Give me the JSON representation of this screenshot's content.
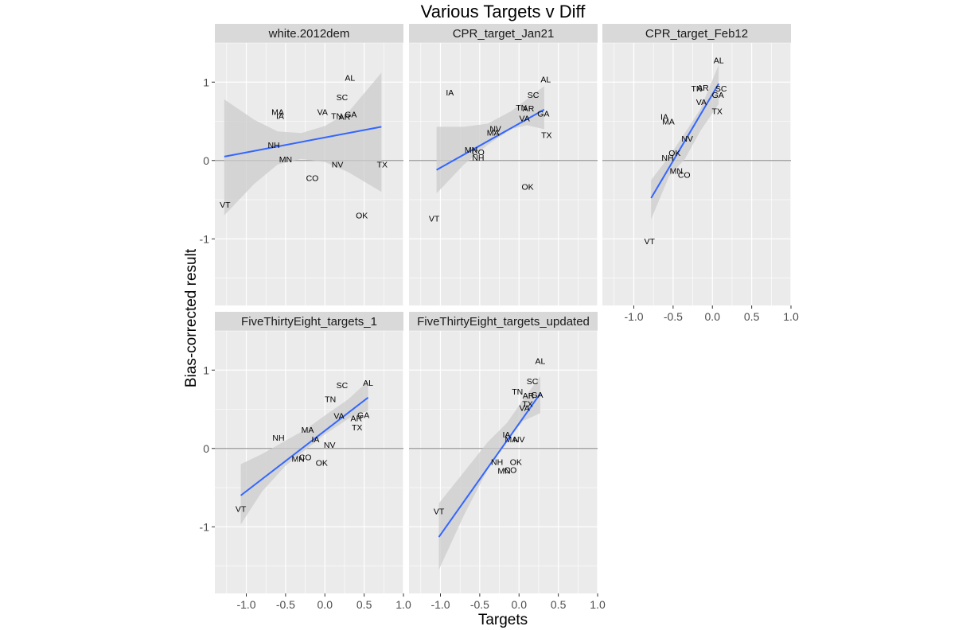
{
  "chart_data": {
    "type": "scatter",
    "title": "Various Targets v Diff",
    "xlabel": "Targets",
    "ylabel": "Bias-corrected result",
    "xlim": [
      -1.4,
      1.0
    ],
    "ylim": [
      -1.85,
      1.5
    ],
    "x_ticks": [
      -1.0,
      -0.5,
      0.0,
      0.5,
      1.0
    ],
    "x_tick_labels": [
      "-1.0",
      "-0.5",
      "0.0",
      "0.5",
      "1.0"
    ],
    "y_ticks": [
      -1,
      0,
      1
    ],
    "y_tick_labels": [
      "-1",
      "0",
      "1"
    ],
    "hline": 0,
    "colors": {
      "panel_bg": "#ebebeb",
      "strip_bg": "#d9d9d9",
      "grid": "#ffffff",
      "fit_line": "#3366ff",
      "ribbon": "#cccccc",
      "hline": "#999999"
    },
    "panels": [
      {
        "name": "white.2012dem",
        "fit": {
          "x": [
            -1.28,
            0.72
          ],
          "y": [
            0.05,
            0.43
          ]
        },
        "ribbon": {
          "x": [
            -1.28,
            -0.9,
            -0.6,
            -0.3,
            0.0,
            0.3,
            0.72
          ],
          "lower": [
            -0.7,
            -0.3,
            -0.05,
            0.02,
            -0.02,
            -0.15,
            -0.4
          ],
          "upper": [
            0.78,
            0.52,
            0.37,
            0.35,
            0.44,
            0.62,
            1.12
          ]
        },
        "points": [
          {
            "label": "AL",
            "x": 0.32,
            "y": 1.06
          },
          {
            "label": "SC",
            "x": 0.22,
            "y": 0.81
          },
          {
            "label": "MA",
            "x": -0.6,
            "y": 0.62
          },
          {
            "label": "IA",
            "x": -0.57,
            "y": 0.57
          },
          {
            "label": "VA",
            "x": -0.03,
            "y": 0.62
          },
          {
            "label": "TN",
            "x": 0.15,
            "y": 0.57
          },
          {
            "label": "AR",
            "x": 0.25,
            "y": 0.56
          },
          {
            "label": "GA",
            "x": 0.33,
            "y": 0.59
          },
          {
            "label": "NH",
            "x": -0.65,
            "y": 0.2
          },
          {
            "label": "MN",
            "x": -0.5,
            "y": 0.02
          },
          {
            "label": "NV",
            "x": 0.16,
            "y": -0.05
          },
          {
            "label": "TX",
            "x": 0.73,
            "y": -0.05
          },
          {
            "label": "CO",
            "x": -0.16,
            "y": -0.22
          },
          {
            "label": "OK",
            "x": 0.47,
            "y": -0.7
          },
          {
            "label": "VT",
            "x": -1.27,
            "y": -0.56
          }
        ]
      },
      {
        "name": "CPR_target_Jan21",
        "fit": {
          "x": [
            -1.05,
            0.32
          ],
          "y": [
            -0.12,
            0.65
          ]
        },
        "ribbon": {
          "x": [
            -1.05,
            -0.7,
            -0.4,
            -0.1,
            0.1,
            0.32
          ],
          "lower": [
            -0.42,
            -0.05,
            0.2,
            0.4,
            0.45,
            0.4
          ],
          "upper": [
            0.43,
            0.43,
            0.47,
            0.63,
            0.78,
            0.95
          ]
        },
        "points": [
          {
            "label": "IA",
            "x": -0.88,
            "y": 0.87
          },
          {
            "label": "AL",
            "x": 0.34,
            "y": 1.04
          },
          {
            "label": "SC",
            "x": 0.18,
            "y": 0.84
          },
          {
            "label": "TN",
            "x": 0.03,
            "y": 0.68
          },
          {
            "label": "AR",
            "x": 0.12,
            "y": 0.67
          },
          {
            "label": "VA",
            "x": 0.07,
            "y": 0.54
          },
          {
            "label": "GA",
            "x": 0.31,
            "y": 0.6
          },
          {
            "label": "NV",
            "x": -0.3,
            "y": 0.41
          },
          {
            "label": "MA",
            "x": -0.33,
            "y": 0.36
          },
          {
            "label": "TX",
            "x": 0.35,
            "y": 0.33
          },
          {
            "label": "MN",
            "x": -0.61,
            "y": 0.14
          },
          {
            "label": "CO",
            "x": -0.52,
            "y": 0.11
          },
          {
            "label": "NH",
            "x": -0.52,
            "y": 0.04
          },
          {
            "label": "OK",
            "x": 0.11,
            "y": -0.33
          },
          {
            "label": "VT",
            "x": -1.08,
            "y": -0.74
          }
        ]
      },
      {
        "name": "CPR_target_Feb12",
        "fit": {
          "x": [
            -0.78,
            0.08
          ],
          "y": [
            -0.48,
            0.98
          ]
        },
        "ribbon": {
          "x": [
            -0.78,
            -0.55,
            -0.35,
            -0.15,
            0.08
          ],
          "lower": [
            -0.75,
            -0.2,
            0.02,
            0.38,
            0.72
          ],
          "upper": [
            -0.25,
            0.05,
            0.35,
            0.66,
            1.22
          ]
        },
        "points": [
          {
            "label": "AL",
            "x": 0.08,
            "y": 1.28
          },
          {
            "label": "TN",
            "x": -0.2,
            "y": 0.92
          },
          {
            "label": "AR",
            "x": -0.12,
            "y": 0.93
          },
          {
            "label": "SC",
            "x": 0.11,
            "y": 0.92
          },
          {
            "label": "GA",
            "x": 0.07,
            "y": 0.84
          },
          {
            "label": "VA",
            "x": -0.14,
            "y": 0.75
          },
          {
            "label": "TX",
            "x": 0.06,
            "y": 0.63
          },
          {
            "label": "IA",
            "x": -0.61,
            "y": 0.56
          },
          {
            "label": "MA",
            "x": -0.56,
            "y": 0.5
          },
          {
            "label": "NV",
            "x": -0.32,
            "y": 0.28
          },
          {
            "label": "OK",
            "x": -0.48,
            "y": 0.1
          },
          {
            "label": "NH",
            "x": -0.57,
            "y": 0.04
          },
          {
            "label": "MN",
            "x": -0.46,
            "y": -0.13
          },
          {
            "label": "CO",
            "x": -0.36,
            "y": -0.18
          },
          {
            "label": "VT",
            "x": -0.8,
            "y": -1.03
          }
        ]
      },
      {
        "name": "FiveThirtyEight_targets_1",
        "fit": {
          "x": [
            -1.07,
            0.55
          ],
          "y": [
            -0.6,
            0.65
          ]
        },
        "ribbon": {
          "x": [
            -1.07,
            -0.8,
            -0.5,
            -0.25,
            0.0,
            0.3,
            0.55
          ],
          "lower": [
            -0.97,
            -0.55,
            -0.22,
            -0.02,
            0.18,
            0.38,
            0.48
          ],
          "upper": [
            -0.2,
            -0.07,
            0.1,
            0.24,
            0.42,
            0.63,
            0.86
          ]
        },
        "points": [
          {
            "label": "SC",
            "x": 0.22,
            "y": 0.81
          },
          {
            "label": "AL",
            "x": 0.55,
            "y": 0.84
          },
          {
            "label": "TN",
            "x": 0.07,
            "y": 0.63
          },
          {
            "label": "VA",
            "x": 0.18,
            "y": 0.42
          },
          {
            "label": "GA",
            "x": 0.49,
            "y": 0.43
          },
          {
            "label": "AR",
            "x": 0.4,
            "y": 0.39
          },
          {
            "label": "TX",
            "x": 0.41,
            "y": 0.27
          },
          {
            "label": "MA",
            "x": -0.22,
            "y": 0.24
          },
          {
            "label": "NH",
            "x": -0.59,
            "y": 0.14
          },
          {
            "label": "IA",
            "x": -0.12,
            "y": 0.12
          },
          {
            "label": "NV",
            "x": 0.06,
            "y": 0.05
          },
          {
            "label": "CO",
            "x": -0.25,
            "y": -0.11
          },
          {
            "label": "MN",
            "x": -0.34,
            "y": -0.13
          },
          {
            "label": "OK",
            "x": -0.04,
            "y": -0.18
          },
          {
            "label": "VT",
            "x": -1.07,
            "y": -0.77
          }
        ]
      },
      {
        "name": "FiveThirtyEight_targets_updated",
        "fit": {
          "x": [
            -1.02,
            0.27
          ],
          "y": [
            -1.13,
            0.7
          ]
        },
        "ribbon": {
          "x": [
            -1.02,
            -0.7,
            -0.4,
            -0.15,
            0.05,
            0.27
          ],
          "lower": [
            -1.55,
            -0.85,
            -0.27,
            0.1,
            0.35,
            0.45
          ],
          "upper": [
            -0.7,
            -0.3,
            0.08,
            0.33,
            0.62,
            0.92
          ]
        },
        "points": [
          {
            "label": "AL",
            "x": 0.27,
            "y": 1.12
          },
          {
            "label": "SC",
            "x": 0.17,
            "y": 0.86
          },
          {
            "label": "TN",
            "x": -0.02,
            "y": 0.73
          },
          {
            "label": "AR",
            "x": 0.12,
            "y": 0.68
          },
          {
            "label": "GA",
            "x": 0.23,
            "y": 0.69
          },
          {
            "label": "TX",
            "x": 0.11,
            "y": 0.57
          },
          {
            "label": "VA",
            "x": 0.07,
            "y": 0.52
          },
          {
            "label": "IA",
            "x": -0.16,
            "y": 0.18
          },
          {
            "label": "MA",
            "x": -0.1,
            "y": 0.12
          },
          {
            "label": "NV",
            "x": 0.0,
            "y": 0.12
          },
          {
            "label": "NH",
            "x": -0.28,
            "y": -0.17
          },
          {
            "label": "OK",
            "x": -0.04,
            "y": -0.17
          },
          {
            "label": "MN",
            "x": -0.19,
            "y": -0.28
          },
          {
            "label": "CO",
            "x": -0.11,
            "y": -0.27
          },
          {
            "label": "VT",
            "x": -1.02,
            "y": -0.8
          }
        ]
      }
    ]
  }
}
